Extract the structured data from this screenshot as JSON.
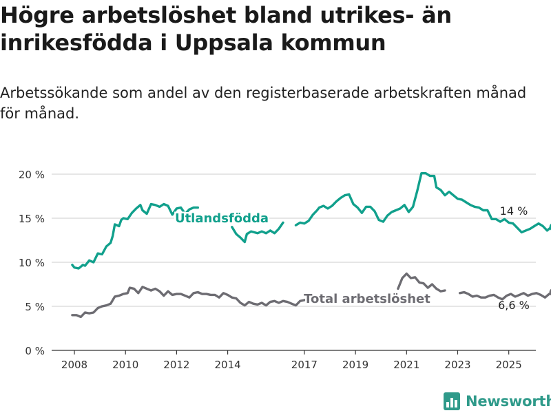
{
  "title": "Högre arbetslöshet bland utrikes- än inrikesfödda i Uppsala kommun",
  "subtitle": "Arbetssökande som andel av den registerbaserade arbetskraften månad för månad.",
  "brand": {
    "name": "Newsworthy",
    "icon": "bar-chart-icon"
  },
  "chart_data": {
    "type": "line",
    "title": "Högre arbetslöshet bland utrikes- än inrikesfödda i Uppsala kommun",
    "subtitle": "Arbetssökande som andel av den registerbaserade arbetskraften månad för månad.",
    "xlabel": "",
    "ylabel": "",
    "x_ticks": [
      "2008",
      "2010",
      "2012",
      "2014",
      "2017",
      "2019",
      "2021",
      "2023",
      "2025"
    ],
    "y_ticks": [
      "0 %",
      "5 %",
      "10 %",
      "15 %",
      "20 %"
    ],
    "y_tick_values": [
      0,
      5,
      10,
      15,
      20
    ],
    "ylim": [
      0,
      20
    ],
    "grid": "horizontal",
    "legend": "inline labels",
    "colors": {
      "utlandsfodda": "#11a08c",
      "total": "#6d6c72",
      "grid": "#d8d8d8",
      "axis": "#333333"
    },
    "series": [
      {
        "name": "Utlandsfödda",
        "key": "utlandsfodda",
        "end_label": "14 %",
        "segments": [
          [
            [
              "2007-12",
              9.7
            ],
            [
              "2008-01",
              9.4
            ],
            [
              "2008-03",
              9.3
            ],
            [
              "2008-05",
              9.7
            ],
            [
              "2008-06",
              9.6
            ],
            [
              "2008-08",
              10.2
            ],
            [
              "2008-10",
              10.0
            ],
            [
              "2008-12",
              11.0
            ],
            [
              "2009-02",
              10.9
            ],
            [
              "2009-04",
              11.8
            ],
            [
              "2009-06",
              12.2
            ],
            [
              "2009-07",
              13.0
            ],
            [
              "2009-08",
              14.3
            ],
            [
              "2009-10",
              14.1
            ],
            [
              "2009-11",
              14.8
            ],
            [
              "2009-12",
              15.0
            ],
            [
              "2010-02",
              14.9
            ],
            [
              "2010-04",
              15.6
            ],
            [
              "2010-06",
              16.1
            ],
            [
              "2010-08",
              16.5
            ],
            [
              "2010-09",
              15.9
            ],
            [
              "2010-11",
              15.5
            ],
            [
              "2011-01",
              16.6
            ],
            [
              "2011-03",
              16.5
            ],
            [
              "2011-05",
              16.3
            ],
            [
              "2011-07",
              16.6
            ],
            [
              "2011-09",
              16.4
            ],
            [
              "2011-11",
              15.4
            ],
            [
              "2012-01",
              16.1
            ],
            [
              "2012-03",
              16.2
            ],
            [
              "2012-05",
              15.5
            ],
            [
              "2012-07",
              16.0
            ],
            [
              "2012-09",
              16.2
            ],
            [
              "2012-11",
              16.2
            ]
          ],
          [
            [
              "2014-03",
              14.0
            ],
            [
              "2014-05",
              13.2
            ],
            [
              "2014-07",
              12.8
            ],
            [
              "2014-09",
              12.3
            ],
            [
              "2014-10",
              13.2
            ],
            [
              "2014-12",
              13.5
            ],
            [
              "2015-03",
              13.3
            ],
            [
              "2015-05",
              13.5
            ],
            [
              "2015-07",
              13.3
            ],
            [
              "2015-09",
              13.6
            ],
            [
              "2015-11",
              13.3
            ],
            [
              "2016-01",
              13.8
            ],
            [
              "2016-03",
              14.5
            ]
          ],
          [
            [
              "2016-09",
              14.2
            ],
            [
              "2016-11",
              14.5
            ],
            [
              "2017-01",
              14.4
            ],
            [
              "2017-03",
              14.7
            ],
            [
              "2017-05",
              15.4
            ],
            [
              "2017-07",
              15.9
            ],
            [
              "2017-08",
              16.2
            ],
            [
              "2017-10",
              16.4
            ],
            [
              "2017-12",
              16.1
            ],
            [
              "2018-02",
              16.4
            ],
            [
              "2018-04",
              16.9
            ],
            [
              "2018-06",
              17.3
            ],
            [
              "2018-08",
              17.6
            ],
            [
              "2018-10",
              17.7
            ],
            [
              "2018-12",
              16.6
            ],
            [
              "2019-02",
              16.2
            ],
            [
              "2019-04",
              15.6
            ],
            [
              "2019-06",
              16.3
            ],
            [
              "2019-08",
              16.3
            ],
            [
              "2019-10",
              15.8
            ],
            [
              "2019-12",
              14.8
            ],
            [
              "2020-02",
              14.6
            ],
            [
              "2020-04",
              15.3
            ],
            [
              "2020-06",
              15.7
            ],
            [
              "2020-08",
              15.9
            ],
            [
              "2020-10",
              16.1
            ],
            [
              "2020-12",
              16.5
            ],
            [
              "2021-02",
              15.7
            ],
            [
              "2021-04",
              16.3
            ],
            [
              "2021-06",
              18.1
            ],
            [
              "2021-08",
              20.1
            ],
            [
              "2021-10",
              20.1
            ],
            [
              "2021-12",
              19.8
            ],
            [
              "2022-02",
              19.8
            ],
            [
              "2022-03",
              18.5
            ],
            [
              "2022-05",
              18.2
            ],
            [
              "2022-07",
              17.6
            ],
            [
              "2022-09",
              18.0
            ],
            [
              "2022-11",
              17.6
            ],
            [
              "2023-01",
              17.2
            ],
            [
              "2023-03",
              17.1
            ],
            [
              "2023-05",
              16.8
            ],
            [
              "2023-07",
              16.5
            ],
            [
              "2023-09",
              16.3
            ],
            [
              "2023-11",
              16.2
            ],
            [
              "2024-01",
              15.9
            ],
            [
              "2024-03",
              15.9
            ],
            [
              "2024-05",
              14.9
            ],
            [
              "2024-07",
              14.9
            ],
            [
              "2024-09",
              14.6
            ],
            [
              "2024-11",
              14.9
            ],
            [
              "2025-01",
              14.5
            ],
            [
              "2025-03",
              14.4
            ],
            [
              "2025-05",
              13.9
            ],
            [
              "2025-07",
              13.4
            ],
            [
              "2025-09",
              13.6
            ],
            [
              "2025-11",
              13.8
            ],
            [
              "2026-01",
              14.1
            ],
            [
              "2026-03",
              14.4
            ],
            [
              "2026-05",
              14.1
            ],
            [
              "2026-07",
              13.6
            ],
            [
              "2026-09",
              14.0
            ],
            [
              "2026-10",
              14.0
            ]
          ]
        ]
      },
      {
        "name": "Total arbetslöshet",
        "key": "total",
        "end_label": "6,6 %",
        "segments": [
          [
            [
              "2007-12",
              4.0
            ],
            [
              "2008-02",
              4.0
            ],
            [
              "2008-04",
              3.8
            ],
            [
              "2008-06",
              4.3
            ],
            [
              "2008-08",
              4.2
            ],
            [
              "2008-10",
              4.3
            ],
            [
              "2008-12",
              4.8
            ],
            [
              "2009-02",
              5.0
            ],
            [
              "2009-04",
              5.1
            ],
            [
              "2009-06",
              5.3
            ],
            [
              "2009-08",
              6.1
            ],
            [
              "2009-10",
              6.2
            ],
            [
              "2009-12",
              6.4
            ],
            [
              "2010-02",
              6.5
            ],
            [
              "2010-03",
              7.1
            ],
            [
              "2010-05",
              7.0
            ],
            [
              "2010-07",
              6.5
            ],
            [
              "2010-09",
              7.2
            ],
            [
              "2010-11",
              7.0
            ],
            [
              "2011-01",
              6.8
            ],
            [
              "2011-03",
              7.0
            ],
            [
              "2011-05",
              6.7
            ],
            [
              "2011-07",
              6.2
            ],
            [
              "2011-09",
              6.7
            ],
            [
              "2011-11",
              6.3
            ],
            [
              "2012-01",
              6.4
            ],
            [
              "2012-03",
              6.4
            ],
            [
              "2012-05",
              6.2
            ],
            [
              "2012-07",
              6.0
            ],
            [
              "2012-09",
              6.5
            ],
            [
              "2012-11",
              6.6
            ],
            [
              "2013-01",
              6.4
            ],
            [
              "2013-03",
              6.4
            ],
            [
              "2013-05",
              6.3
            ],
            [
              "2013-07",
              6.3
            ],
            [
              "2013-09",
              6.0
            ],
            [
              "2013-11",
              6.5
            ],
            [
              "2014-01",
              6.3
            ],
            [
              "2014-03",
              6.0
            ],
            [
              "2014-05",
              5.9
            ],
            [
              "2014-07",
              5.4
            ],
            [
              "2014-09",
              5.1
            ],
            [
              "2014-11",
              5.5
            ],
            [
              "2015-01",
              5.3
            ],
            [
              "2015-03",
              5.2
            ],
            [
              "2015-05",
              5.4
            ],
            [
              "2015-07",
              5.1
            ],
            [
              "2015-09",
              5.5
            ],
            [
              "2015-11",
              5.6
            ],
            [
              "2016-01",
              5.4
            ],
            [
              "2016-03",
              5.6
            ],
            [
              "2016-05",
              5.5
            ],
            [
              "2016-07",
              5.3
            ],
            [
              "2016-09",
              5.1
            ],
            [
              "2016-11",
              5.6
            ],
            [
              "2017-01",
              5.7
            ],
            [
              "2017-03",
              5.8
            ],
            [
              "2017-05",
              5.7
            ],
            [
              "2017-07",
              5.8
            ]
          ],
          [
            [
              "2020-09",
              7.0
            ],
            [
              "2020-11",
              8.2
            ],
            [
              "2021-01",
              8.7
            ],
            [
              "2021-03",
              8.2
            ],
            [
              "2021-05",
              8.3
            ],
            [
              "2021-07",
              7.7
            ],
            [
              "2021-09",
              7.6
            ],
            [
              "2021-11",
              7.1
            ],
            [
              "2022-01",
              7.5
            ],
            [
              "2022-03",
              7.0
            ],
            [
              "2022-05",
              6.7
            ],
            [
              "2022-07",
              6.8
            ]
          ],
          [
            [
              "2023-02",
              6.5
            ],
            [
              "2023-04",
              6.6
            ],
            [
              "2023-06",
              6.4
            ],
            [
              "2023-08",
              6.1
            ],
            [
              "2023-10",
              6.2
            ],
            [
              "2023-12",
              6.0
            ],
            [
              "2024-02",
              6.0
            ],
            [
              "2024-04",
              6.2
            ],
            [
              "2024-06",
              6.3
            ],
            [
              "2024-08",
              6.0
            ],
            [
              "2024-10",
              5.8
            ],
            [
              "2024-12",
              6.2
            ],
            [
              "2025-02",
              6.4
            ],
            [
              "2025-04",
              6.1
            ],
            [
              "2025-06",
              6.3
            ],
            [
              "2025-08",
              6.5
            ],
            [
              "2025-10",
              6.2
            ],
            [
              "2025-12",
              6.4
            ],
            [
              "2026-02",
              6.5
            ],
            [
              "2026-04",
              6.3
            ],
            [
              "2026-06",
              6.0
            ],
            [
              "2026-08",
              6.4
            ],
            [
              "2026-10",
              6.6
            ]
          ]
        ]
      }
    ]
  }
}
